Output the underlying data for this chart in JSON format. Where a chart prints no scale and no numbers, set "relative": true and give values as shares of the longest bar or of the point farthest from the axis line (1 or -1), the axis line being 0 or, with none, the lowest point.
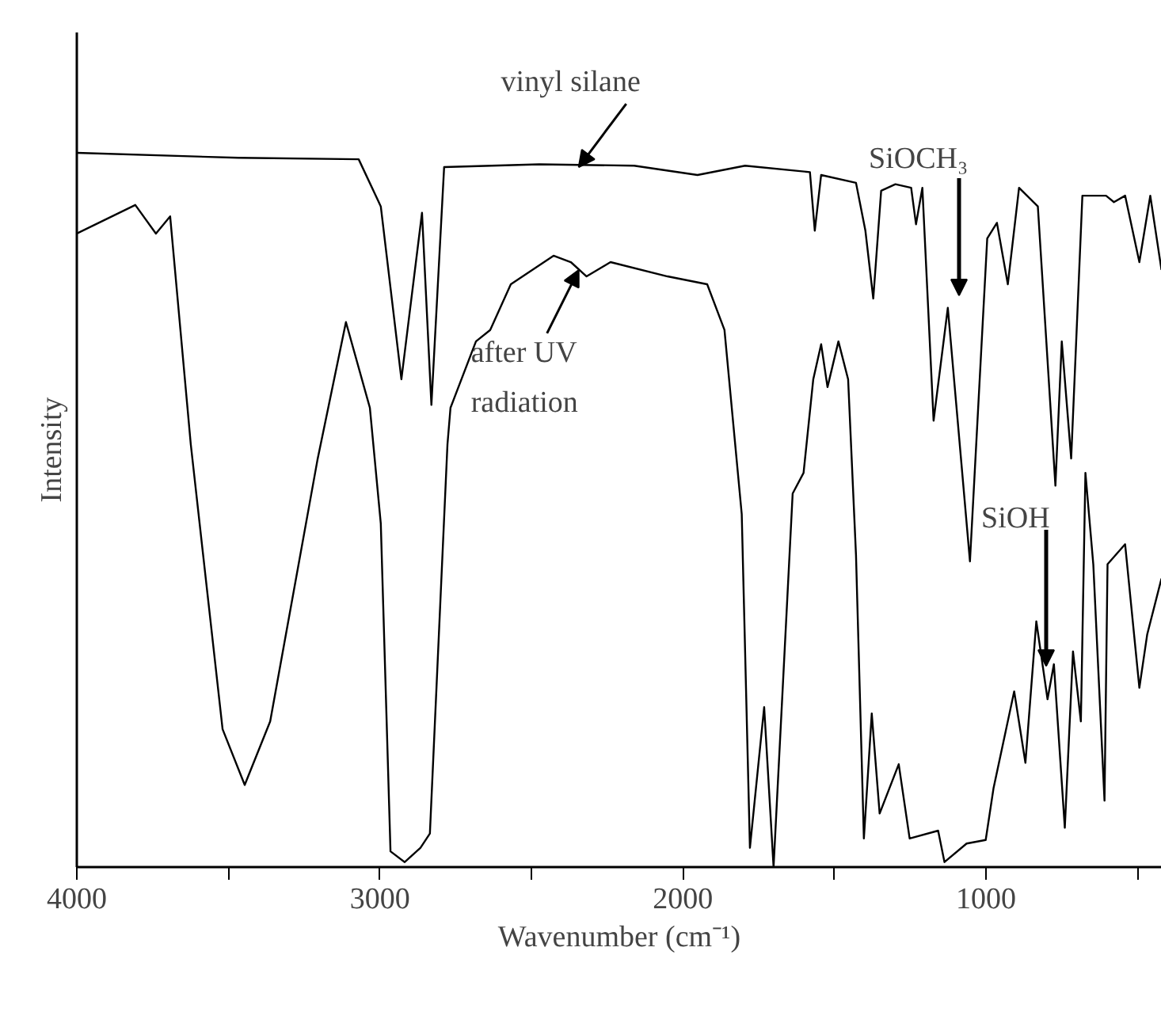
{
  "chart_data": {
    "type": "line",
    "relative": true,
    "xlabel": "Wavenumber (cm⁻¹)",
    "ylabel": "Intensity",
    "xlim": [
      4000,
      420
    ],
    "xticks": [
      4000,
      {
        "value": 3500,
        "label": null
      },
      3000,
      {
        "value": 2500,
        "label": null
      },
      2000,
      {
        "value": 1500,
        "label": null
      },
      1000,
      {
        "value": 500,
        "label": null
      }
    ],
    "grid": false,
    "marker": "none",
    "line_style": "solid",
    "series": [
      {
        "color": "#000000",
        "x": [
          4000,
          3467,
          3070,
          2997,
          2929,
          2861,
          2830,
          2788,
          2474,
          2161,
          1952,
          1795,
          1581,
          1565,
          1544,
          1429,
          1398,
          1372,
          1346,
          1299,
          1247,
          1231,
          1210,
          1173,
          1126,
          1053,
          996,
          964,
          928,
          891,
          829,
          771,
          750,
          719,
          682,
          604,
          578,
          541,
          494,
          458,
          421
        ],
        "values": [
          1.0,
          0.993,
          0.991,
          0.925,
          0.683,
          0.916,
          0.647,
          0.98,
          0.984,
          0.982,
          0.969,
          0.982,
          0.973,
          0.891,
          0.969,
          0.958,
          0.891,
          0.796,
          0.947,
          0.956,
          0.951,
          0.9,
          0.951,
          0.625,
          0.783,
          0.428,
          0.88,
          0.902,
          0.816,
          0.951,
          0.925,
          0.534,
          0.736,
          0.572,
          0.94,
          0.94,
          0.931,
          0.94,
          0.847,
          0.94,
          0.836
        ]
      },
      {
        "color": "#000000",
        "x": [
          4000,
          3807,
          3739,
          3692,
          3624,
          3519,
          3446,
          3362,
          3206,
          3112,
          3033,
          2997,
          2965,
          2918,
          2866,
          2835,
          2777,
          2767,
          2683,
          2636,
          2568,
          2427,
          2370,
          2318,
          2239,
          2051,
          1920,
          1863,
          1806,
          1779,
          1732,
          1701,
          1638,
          1602,
          1570,
          1544,
          1523,
          1487,
          1455,
          1429,
          1403,
          1377,
          1351,
          1288,
          1252,
          1158,
          1137,
          1064,
          1001,
          975,
          907,
          870,
          834,
          797,
          776,
          740,
          713,
          687,
          672,
          646,
          609,
          599,
          541,
          494,
          468,
          421
        ],
        "values": [
          0.887,
          0.927,
          0.887,
          0.911,
          0.592,
          0.193,
          0.115,
          0.204,
          0.57,
          0.763,
          0.643,
          0.481,
          0.022,
          0.007,
          0.027,
          0.047,
          0.592,
          0.643,
          0.736,
          0.752,
          0.816,
          0.856,
          0.847,
          0.827,
          0.847,
          0.827,
          0.816,
          0.752,
          0.494,
          0.027,
          0.224,
          0.0,
          0.523,
          0.552,
          0.683,
          0.732,
          0.672,
          0.736,
          0.683,
          0.437,
          0.04,
          0.215,
          0.075,
          0.144,
          0.04,
          0.051,
          0.007,
          0.033,
          0.038,
          0.111,
          0.246,
          0.146,
          0.344,
          0.235,
          0.284,
          0.055,
          0.302,
          0.204,
          0.552,
          0.424,
          0.093,
          0.424,
          0.452,
          0.251,
          0.326,
          0.404
        ]
      }
    ],
    "annotations": [
      {
        "text": "vinyl silane",
        "x": 2344,
        "y": 0.98
      },
      {
        "text": "after UV radiation",
        "x": 2344,
        "y": 0.836
      },
      "SiOCH₃",
      "SiOH"
    ]
  }
}
